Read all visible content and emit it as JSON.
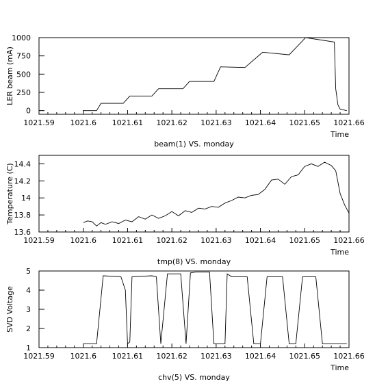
{
  "chart_data": [
    {
      "type": "line",
      "ylabel": "LER beam (mA)",
      "xlabel": "Time",
      "caption": "beam(1) VS. monday",
      "xlim": [
        1021.59,
        1021.66
      ],
      "ylim": [
        -50,
        1000
      ],
      "xticks": [
        "1021.59",
        "1021.6",
        "1021.61",
        "1021.62",
        "1021.63",
        "1021.64",
        "1021.65",
        "1021.66"
      ],
      "yticks": [
        "0",
        "250",
        "500",
        "750",
        "1000"
      ],
      "series": [
        {
          "x": [
            1021.6,
            1021.603,
            1021.604,
            1021.609,
            1021.6105,
            1021.6155,
            1021.617,
            1021.6225,
            1021.624,
            1021.6295,
            1021.631,
            1021.6365,
            1021.6405,
            1021.6465,
            1021.6502,
            1021.6567,
            1021.657,
            1021.6575,
            1021.658,
            1021.6595
          ],
          "y": [
            0,
            0,
            100,
            100,
            200,
            200,
            300,
            300,
            400,
            400,
            600,
            590,
            800,
            765,
            1000,
            940,
            300,
            80,
            20,
            0
          ]
        }
      ]
    },
    {
      "type": "line",
      "ylabel": "Temperature (C)",
      "xlabel": "Time",
      "caption": "tmp(8) VS. monday",
      "xlim": [
        1021.59,
        1021.66
      ],
      "ylim": [
        13.6,
        14.5
      ],
      "xticks": [
        "1021.59",
        "1021.6",
        "1021.61",
        "1021.62",
        "1021.63",
        "1021.64",
        "1021.65",
        "1021.66"
      ],
      "yticks": [
        "13.6",
        "13.8",
        "14",
        "14.2",
        "14.4"
      ],
      "series": [
        {
          "x": [
            1021.6,
            1021.601,
            1021.602,
            1021.603,
            1021.604,
            1021.605,
            1021.6065,
            1021.608,
            1021.6095,
            1021.611,
            1021.6125,
            1021.614,
            1021.6155,
            1021.617,
            1021.6185,
            1021.62,
            1021.6215,
            1021.623,
            1021.6245,
            1021.626,
            1021.6275,
            1021.629,
            1021.6305,
            1021.632,
            1021.6335,
            1021.635,
            1021.6365,
            1021.638,
            1021.6395,
            1021.641,
            1021.6425,
            1021.644,
            1021.6455,
            1021.647,
            1021.6485,
            1021.65,
            1021.6515,
            1021.653,
            1021.6545,
            1021.656,
            1021.657,
            1021.658,
            1021.659,
            1021.66
          ],
          "y": [
            13.71,
            13.73,
            13.72,
            13.67,
            13.71,
            13.69,
            13.72,
            13.7,
            13.74,
            13.72,
            13.78,
            13.75,
            13.8,
            13.76,
            13.79,
            13.84,
            13.79,
            13.85,
            13.83,
            13.88,
            13.87,
            13.9,
            13.89,
            13.94,
            13.97,
            14.01,
            14.0,
            14.03,
            14.04,
            14.1,
            14.21,
            14.22,
            14.16,
            14.25,
            14.27,
            14.37,
            14.4,
            14.37,
            14.42,
            14.38,
            14.32,
            14.05,
            13.92,
            13.82
          ]
        }
      ]
    },
    {
      "type": "line",
      "ylabel": "SVD Voltage",
      "xlabel": "Time",
      "caption": "chv(5) VS. monday",
      "xlim": [
        1021.59,
        1021.66
      ],
      "ylim": [
        1,
        5
      ],
      "xticks": [
        "1021.59",
        "1021.6",
        "1021.61",
        "1021.62",
        "1021.63",
        "1021.64",
        "1021.65",
        "1021.66"
      ],
      "yticks": [
        "1",
        "2",
        "3",
        "4",
        "5"
      ],
      "series": [
        {
          "x": [
            1021.6,
            1021.603,
            1021.6045,
            1021.6085,
            1021.6095,
            1021.61,
            1021.6105,
            1021.611,
            1021.6155,
            1021.6165,
            1021.6175,
            1021.619,
            1021.622,
            1021.6232,
            1021.6242,
            1021.6255,
            1021.6285,
            1021.6295,
            1021.6305,
            1021.632,
            1021.6325,
            1021.6335,
            1021.637,
            1021.6385,
            1021.64,
            1021.6415,
            1021.645,
            1021.6465,
            1021.648,
            1021.6495,
            1021.6525,
            1021.654,
            1021.6555,
            1021.6595
          ],
          "y": [
            1.2,
            1.2,
            4.75,
            4.7,
            4.0,
            1.2,
            1.3,
            4.7,
            4.75,
            4.7,
            1.2,
            4.85,
            4.85,
            1.2,
            4.9,
            4.95,
            4.95,
            1.2,
            1.2,
            1.2,
            4.85,
            4.7,
            4.7,
            1.2,
            1.2,
            4.7,
            4.7,
            1.2,
            1.2,
            4.7,
            4.7,
            1.2,
            1.2,
            1.2
          ]
        }
      ]
    }
  ]
}
